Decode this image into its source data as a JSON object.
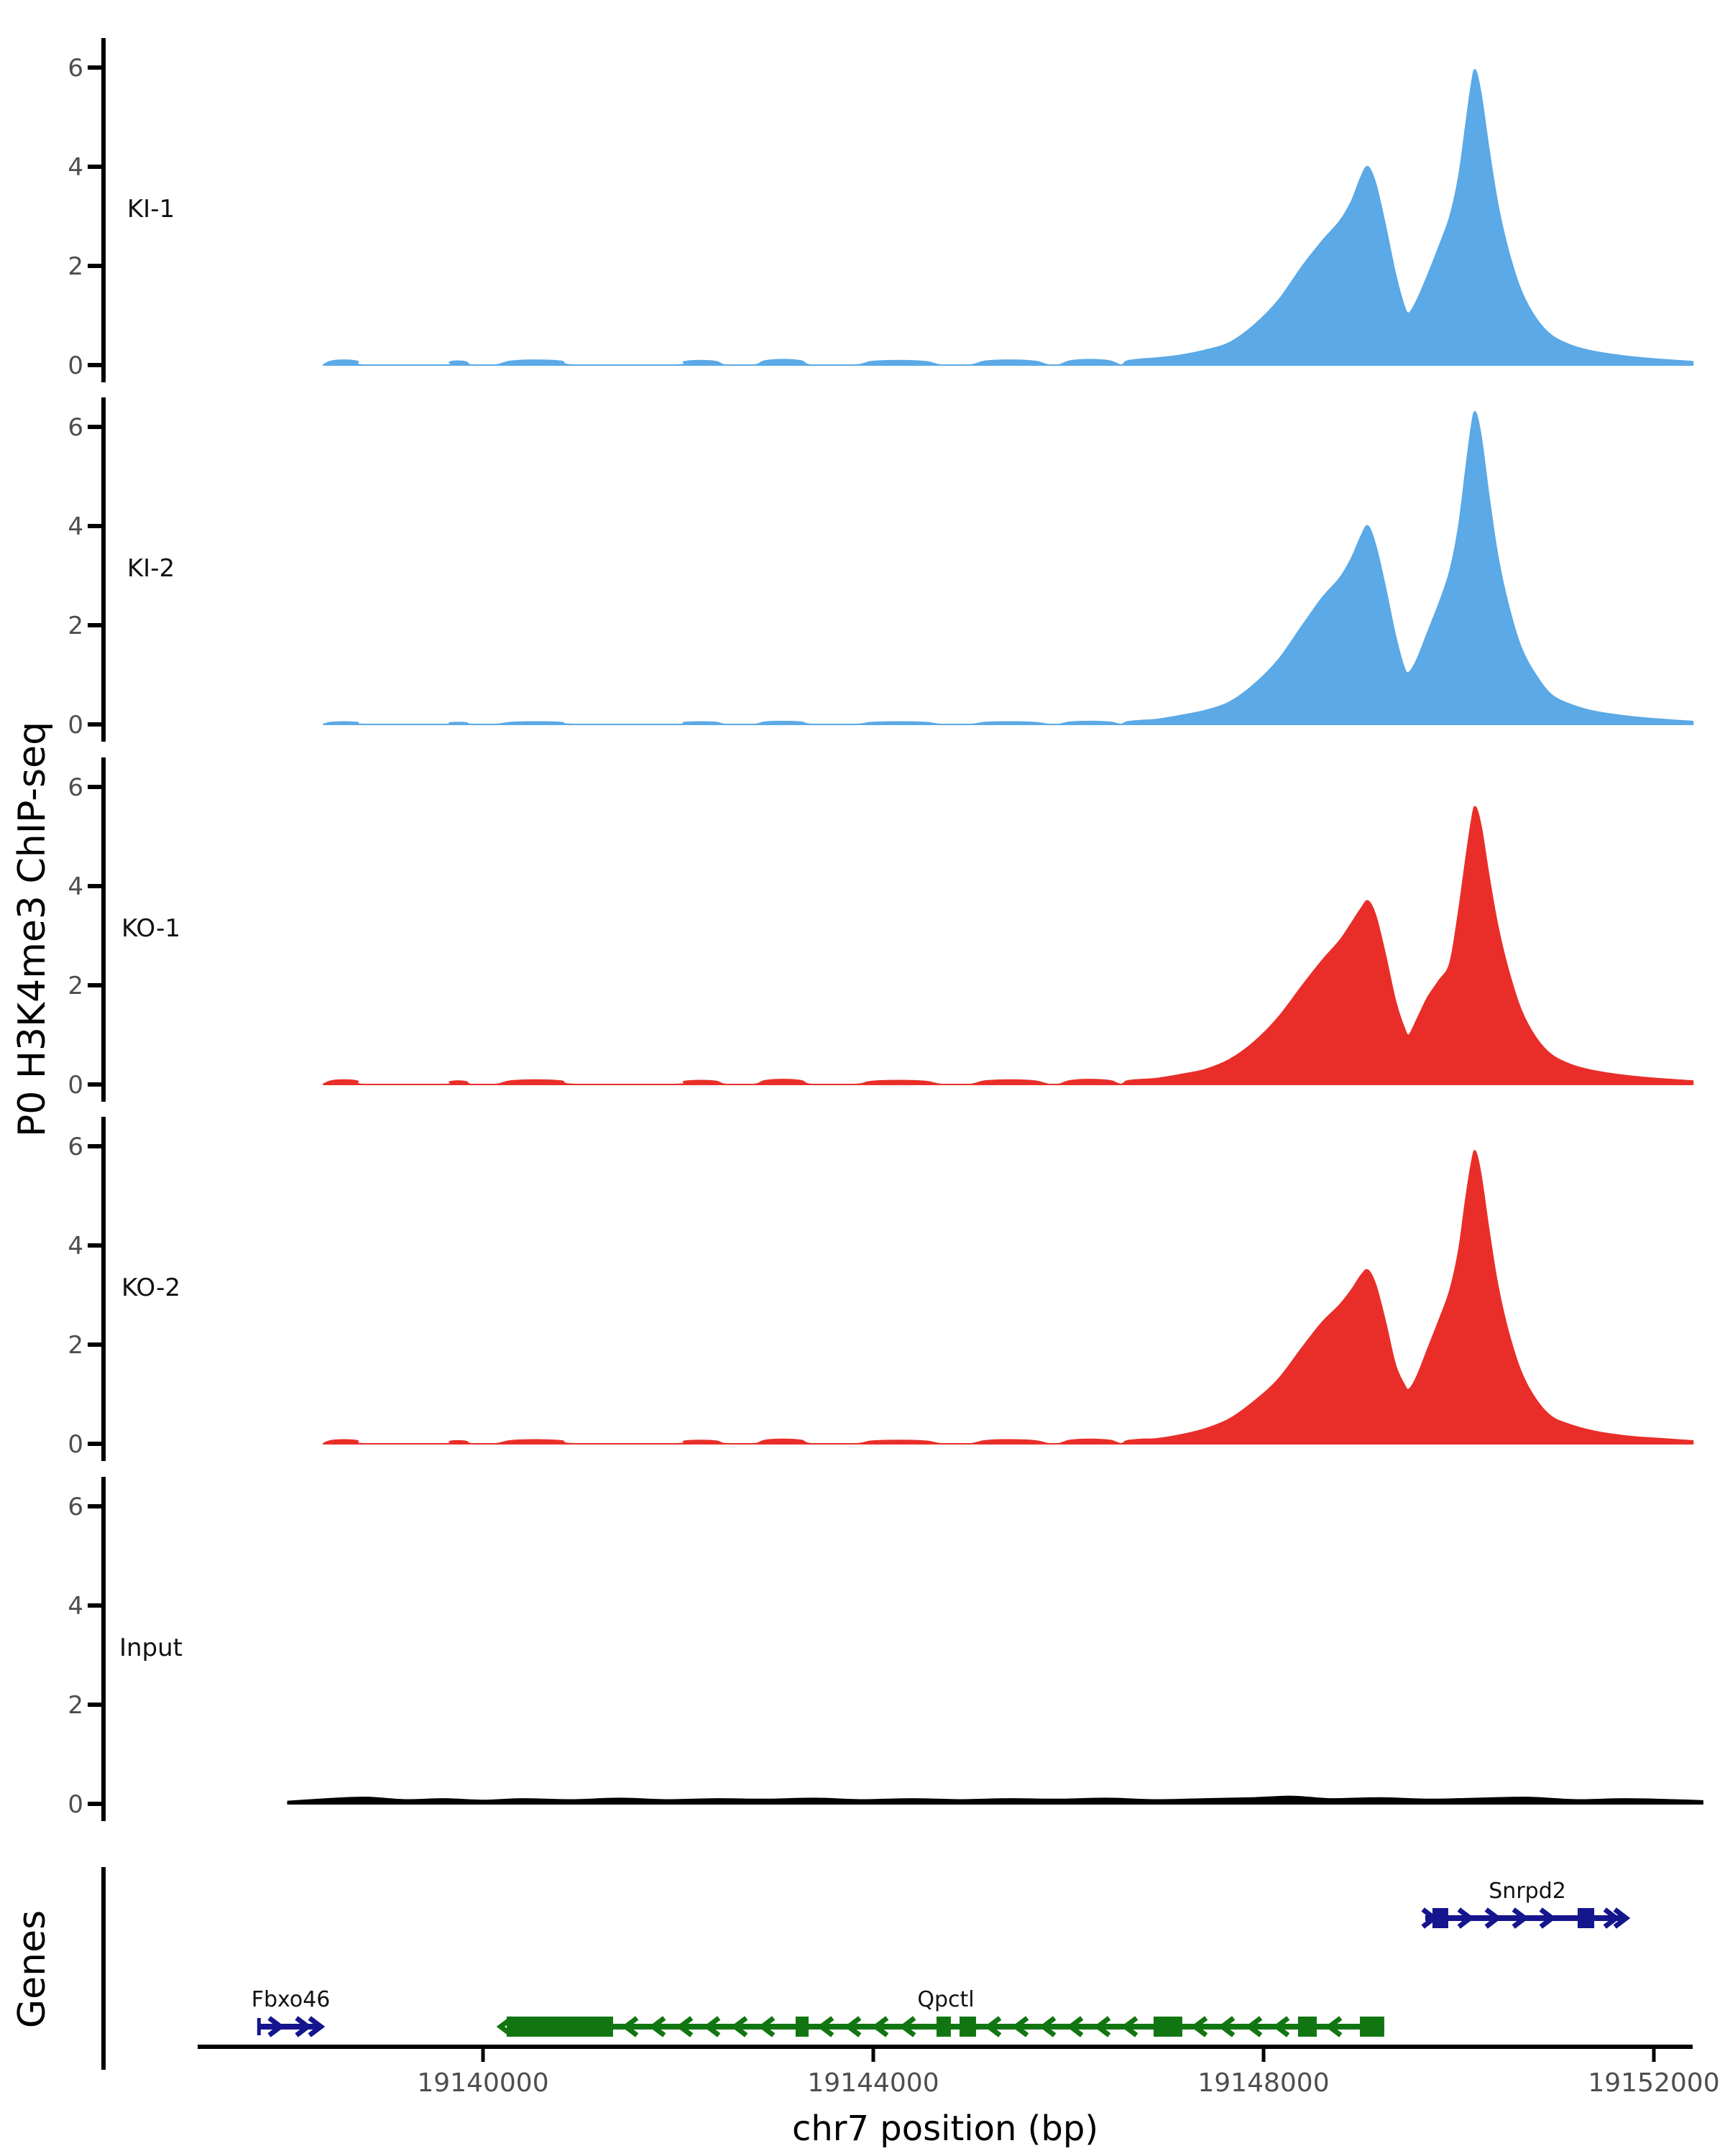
{
  "chart_data": {
    "type": "area",
    "title": "",
    "xlabel": "chr7 position (bp)",
    "ylabel": "P0 H3K4me3 ChIP-seq",
    "genes_panel_title": "Genes",
    "chromosome": "chr7",
    "x_domain_bp": [
      19137075,
      19152395
    ],
    "x_ticks": [
      {
        "bp": 19140000,
        "label": "19140000"
      },
      {
        "bp": 19144000,
        "label": "19144000"
      },
      {
        "bp": 19148000,
        "label": "19148000"
      },
      {
        "bp": 19152000,
        "label": "19152000"
      }
    ],
    "y_ticks": [
      0,
      2,
      4,
      6
    ],
    "y_max": 6.6,
    "grid": false,
    "legend": "none",
    "series": [
      {
        "label": "KI-1",
        "color": "#5BA9E6",
        "bumps": [
          [
            19138360,
            19138790,
            0.1
          ],
          [
            19139610,
            19139880,
            0.08
          ],
          [
            19140130,
            19140950,
            0.1
          ],
          [
            19141970,
            19142490,
            0.09
          ],
          [
            19142780,
            19143370,
            0.11
          ],
          [
            19143820,
            19144700,
            0.09
          ],
          [
            19144995,
            19145800,
            0.1
          ],
          [
            19145900,
            19146540,
            0.11
          ]
        ],
        "profile": [
          [
            19146600,
            0.08
          ],
          [
            19146750,
            0.12
          ],
          [
            19146900,
            0.14
          ],
          [
            19147150,
            0.2
          ],
          [
            19147400,
            0.3
          ],
          [
            19147650,
            0.45
          ],
          [
            19147900,
            0.8
          ],
          [
            19148150,
            1.3
          ],
          [
            19148400,
            2.0
          ],
          [
            19148600,
            2.5
          ],
          [
            19148780,
            2.9
          ],
          [
            19148900,
            3.3
          ],
          [
            19149000,
            3.8
          ],
          [
            19149070,
            4.0
          ],
          [
            19149150,
            3.65
          ],
          [
            19149250,
            2.8
          ],
          [
            19149350,
            1.85
          ],
          [
            19149440,
            1.2
          ],
          [
            19149490,
            1.05
          ],
          [
            19149570,
            1.3
          ],
          [
            19149680,
            1.8
          ],
          [
            19149800,
            2.4
          ],
          [
            19149910,
            3.0
          ],
          [
            19150000,
            3.8
          ],
          [
            19150070,
            4.8
          ],
          [
            19150130,
            5.65
          ],
          [
            19150170,
            5.95
          ],
          [
            19150230,
            5.45
          ],
          [
            19150310,
            4.35
          ],
          [
            19150400,
            3.25
          ],
          [
            19150510,
            2.3
          ],
          [
            19150640,
            1.5
          ],
          [
            19150790,
            0.95
          ],
          [
            19150950,
            0.6
          ],
          [
            19151150,
            0.4
          ],
          [
            19151400,
            0.27
          ],
          [
            19151750,
            0.17
          ],
          [
            19152100,
            0.11
          ],
          [
            19152400,
            0.07
          ]
        ]
      },
      {
        "label": "KI-2",
        "color": "#5BA9E6",
        "bumps": [
          [
            19138360,
            19138790,
            0.05
          ],
          [
            19139610,
            19139880,
            0.04
          ],
          [
            19140130,
            19140950,
            0.05
          ],
          [
            19141970,
            19142490,
            0.05
          ],
          [
            19142780,
            19143370,
            0.06
          ],
          [
            19143820,
            19144700,
            0.05
          ],
          [
            19144995,
            19145800,
            0.05
          ],
          [
            19145900,
            19146540,
            0.06
          ]
        ],
        "profile": [
          [
            19146600,
            0.05
          ],
          [
            19146750,
            0.08
          ],
          [
            19146900,
            0.1
          ],
          [
            19147150,
            0.18
          ],
          [
            19147400,
            0.28
          ],
          [
            19147650,
            0.45
          ],
          [
            19147900,
            0.8
          ],
          [
            19148150,
            1.3
          ],
          [
            19148400,
            2.0
          ],
          [
            19148600,
            2.55
          ],
          [
            19148780,
            2.95
          ],
          [
            19148900,
            3.35
          ],
          [
            19149000,
            3.8
          ],
          [
            19149070,
            4.0
          ],
          [
            19149150,
            3.6
          ],
          [
            19149250,
            2.75
          ],
          [
            19149350,
            1.8
          ],
          [
            19149440,
            1.15
          ],
          [
            19149490,
            1.05
          ],
          [
            19149570,
            1.3
          ],
          [
            19149680,
            1.85
          ],
          [
            19149800,
            2.45
          ],
          [
            19149910,
            3.1
          ],
          [
            19150000,
            4.0
          ],
          [
            19150070,
            5.1
          ],
          [
            19150130,
            6.0
          ],
          [
            19150170,
            6.3
          ],
          [
            19150230,
            5.8
          ],
          [
            19150310,
            4.6
          ],
          [
            19150400,
            3.4
          ],
          [
            19150510,
            2.4
          ],
          [
            19150640,
            1.55
          ],
          [
            19150790,
            1.0
          ],
          [
            19150950,
            0.6
          ],
          [
            19151150,
            0.4
          ],
          [
            19151400,
            0.26
          ],
          [
            19151750,
            0.16
          ],
          [
            19152100,
            0.1
          ],
          [
            19152400,
            0.06
          ]
        ]
      },
      {
        "label": "KO-1",
        "color": "#E92E29",
        "bumps": [
          [
            19138360,
            19138790,
            0.09
          ],
          [
            19139610,
            19139880,
            0.07
          ],
          [
            19140130,
            19140950,
            0.09
          ],
          [
            19141970,
            19142490,
            0.08
          ],
          [
            19142780,
            19143370,
            0.1
          ],
          [
            19143820,
            19144700,
            0.08
          ],
          [
            19144995,
            19145800,
            0.09
          ],
          [
            19145900,
            19146540,
            0.1
          ]
        ],
        "profile": [
          [
            19146600,
            0.07
          ],
          [
            19146750,
            0.1
          ],
          [
            19146900,
            0.12
          ],
          [
            19147150,
            0.2
          ],
          [
            19147400,
            0.3
          ],
          [
            19147650,
            0.5
          ],
          [
            19147900,
            0.85
          ],
          [
            19148150,
            1.35
          ],
          [
            19148400,
            2.0
          ],
          [
            19148600,
            2.5
          ],
          [
            19148780,
            2.9
          ],
          [
            19148900,
            3.25
          ],
          [
            19149000,
            3.55
          ],
          [
            19149070,
            3.7
          ],
          [
            19149150,
            3.4
          ],
          [
            19149250,
            2.6
          ],
          [
            19149350,
            1.7
          ],
          [
            19149440,
            1.15
          ],
          [
            19149490,
            1.0
          ],
          [
            19149570,
            1.3
          ],
          [
            19149680,
            1.75
          ],
          [
            19149800,
            2.1
          ],
          [
            19149910,
            2.45
          ],
          [
            19150000,
            3.5
          ],
          [
            19150070,
            4.5
          ],
          [
            19150130,
            5.3
          ],
          [
            19150170,
            5.6
          ],
          [
            19150230,
            5.2
          ],
          [
            19150310,
            4.2
          ],
          [
            19150400,
            3.2
          ],
          [
            19150510,
            2.3
          ],
          [
            19150640,
            1.5
          ],
          [
            19150790,
            0.95
          ],
          [
            19150950,
            0.6
          ],
          [
            19151150,
            0.4
          ],
          [
            19151400,
            0.27
          ],
          [
            19151750,
            0.17
          ],
          [
            19152100,
            0.11
          ],
          [
            19152400,
            0.07
          ]
        ]
      },
      {
        "label": "KO-2",
        "color": "#E92E29",
        "bumps": [
          [
            19138360,
            19138790,
            0.08
          ],
          [
            19139610,
            19139880,
            0.06
          ],
          [
            19140130,
            19140950,
            0.08
          ],
          [
            19141970,
            19142490,
            0.07
          ],
          [
            19142780,
            19143370,
            0.09
          ],
          [
            19143820,
            19144700,
            0.07
          ],
          [
            19144995,
            19145800,
            0.08
          ],
          [
            19145900,
            19146540,
            0.09
          ]
        ],
        "profile": [
          [
            19146600,
            0.06
          ],
          [
            19146750,
            0.09
          ],
          [
            19146900,
            0.1
          ],
          [
            19147150,
            0.18
          ],
          [
            19147400,
            0.3
          ],
          [
            19147650,
            0.5
          ],
          [
            19147900,
            0.85
          ],
          [
            19148150,
            1.3
          ],
          [
            19148400,
            1.95
          ],
          [
            19148600,
            2.45
          ],
          [
            19148780,
            2.8
          ],
          [
            19148900,
            3.1
          ],
          [
            19149000,
            3.4
          ],
          [
            19149070,
            3.5
          ],
          [
            19149150,
            3.2
          ],
          [
            19149250,
            2.45
          ],
          [
            19149350,
            1.6
          ],
          [
            19149440,
            1.2
          ],
          [
            19149490,
            1.1
          ],
          [
            19149570,
            1.35
          ],
          [
            19149680,
            1.9
          ],
          [
            19149800,
            2.5
          ],
          [
            19149910,
            3.1
          ],
          [
            19150000,
            3.9
          ],
          [
            19150070,
            4.9
          ],
          [
            19150130,
            5.65
          ],
          [
            19150170,
            5.9
          ],
          [
            19150230,
            5.4
          ],
          [
            19150310,
            4.3
          ],
          [
            19150400,
            3.2
          ],
          [
            19150510,
            2.25
          ],
          [
            19150640,
            1.45
          ],
          [
            19150790,
            0.9
          ],
          [
            19150950,
            0.55
          ],
          [
            19151150,
            0.38
          ],
          [
            19151400,
            0.25
          ],
          [
            19151750,
            0.15
          ],
          [
            19152100,
            0.1
          ],
          [
            19152400,
            0.06
          ]
        ]
      },
      {
        "label": "Input",
        "color": "#000000",
        "bumps": [],
        "profile": [
          [
            19138000,
            0.05
          ],
          [
            19138400,
            0.1
          ],
          [
            19138800,
            0.13
          ],
          [
            19139200,
            0.08
          ],
          [
            19139600,
            0.1
          ],
          [
            19140000,
            0.07
          ],
          [
            19140400,
            0.1
          ],
          [
            19140900,
            0.08
          ],
          [
            19141400,
            0.11
          ],
          [
            19141900,
            0.08
          ],
          [
            19142400,
            0.1
          ],
          [
            19142900,
            0.09
          ],
          [
            19143400,
            0.11
          ],
          [
            19143900,
            0.08
          ],
          [
            19144400,
            0.1
          ],
          [
            19144900,
            0.08
          ],
          [
            19145400,
            0.1
          ],
          [
            19145900,
            0.09
          ],
          [
            19146400,
            0.11
          ],
          [
            19146900,
            0.08
          ],
          [
            19147400,
            0.1
          ],
          [
            19147900,
            0.12
          ],
          [
            19148300,
            0.15
          ],
          [
            19148700,
            0.1
          ],
          [
            19149200,
            0.12
          ],
          [
            19149700,
            0.09
          ],
          [
            19150200,
            0.11
          ],
          [
            19150700,
            0.13
          ],
          [
            19151200,
            0.08
          ],
          [
            19151700,
            0.1
          ],
          [
            19152200,
            0.08
          ],
          [
            19152500,
            0.06
          ]
        ]
      }
    ],
    "genes": [
      {
        "name": "Fbxo46",
        "strand": "+",
        "row": "lower",
        "color": "#15158D",
        "start_bp": 19137700,
        "end_bp": 19138320,
        "exons_bp": [],
        "label_bp": 19138030,
        "start_bar": true,
        "start_chevron": false
      },
      {
        "name": "Qpctl",
        "strand": "-",
        "row": "lower",
        "color": "#117611",
        "start_bp": 19140243,
        "end_bp": 19149237,
        "exons_bp": [
          [
            19140243,
            19141333
          ],
          [
            19143204,
            19143337
          ],
          [
            19144648,
            19144795
          ],
          [
            19144884,
            19145053
          ],
          [
            19146873,
            19147167
          ],
          [
            19148353,
            19148545
          ],
          [
            19148987,
            19149237
          ]
        ],
        "label_bp": 19144744,
        "start_bar": false,
        "start_chevron": false
      },
      {
        "name": "Snrpd2",
        "strand": "+",
        "row": "upper",
        "color": "#15158D",
        "start_bp": 19149657,
        "end_bp": 19151698,
        "exons_bp": [
          [
            19149731,
            19149893
          ],
          [
            19151219,
            19151389
          ]
        ],
        "label_bp": 19150704,
        "start_bar": false,
        "start_chevron": true
      }
    ]
  },
  "colors": {
    "background": "#ffffff",
    "axis": "#000000",
    "tick_label": "#4d4d4d",
    "track_label": "#111111",
    "ki_blue": "#5BA9E6",
    "ko_red": "#E92E29",
    "input_black": "#000000",
    "gene_green": "#117611",
    "gene_navy": "#15158D"
  }
}
